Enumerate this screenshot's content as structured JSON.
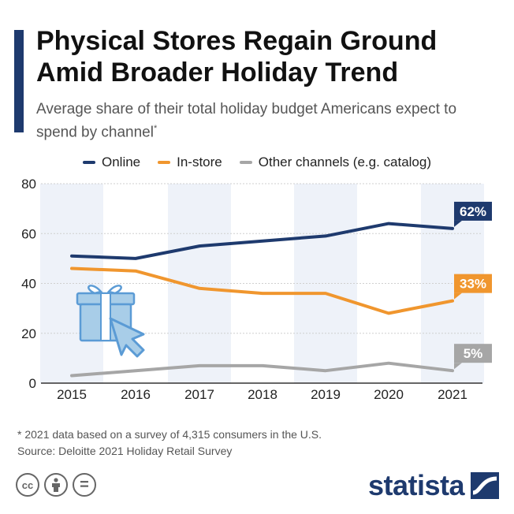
{
  "header": {
    "title_line1": "Physical Stores Regain Ground",
    "title_line2": "Amid Broader Holiday Trend",
    "subtitle": "Average share of their total holiday budget Americans expect to spend by channel",
    "subtitle_mark": "*"
  },
  "chart_data": {
    "type": "line",
    "x": [
      "2015",
      "2016",
      "2017",
      "2018",
      "2019",
      "2020",
      "2021"
    ],
    "yticks": [
      "80",
      "60",
      "40",
      "20",
      "0"
    ],
    "ylim": [
      0,
      80
    ],
    "series": [
      {
        "name": "Online",
        "color": "#1e3a6e",
        "values": [
          51,
          50,
          55,
          57,
          59,
          64,
          62
        ],
        "end_label": "62%"
      },
      {
        "name": "In-store",
        "color": "#f0962e",
        "values": [
          46,
          45,
          38,
          36,
          36,
          28,
          33
        ],
        "end_label": "33%"
      },
      {
        "name": "Other channels (e.g. catalog)",
        "color": "#a6a6a6",
        "values": [
          3,
          5,
          7,
          7,
          5,
          8,
          5
        ],
        "end_label": "5%"
      }
    ],
    "grid": true,
    "legend_position": "top"
  },
  "footer": {
    "footnote": "* 2021 data based on a survey of 4,315 consumers in the U.S.",
    "source": "Source: Deloitte 2021 Holiday Retail Survey",
    "brand": "statista",
    "license_icons": [
      "cc-icon",
      "person-icon",
      "equals-icon"
    ],
    "license_glyphs": {
      "cc": "cc",
      "eq": "="
    }
  }
}
